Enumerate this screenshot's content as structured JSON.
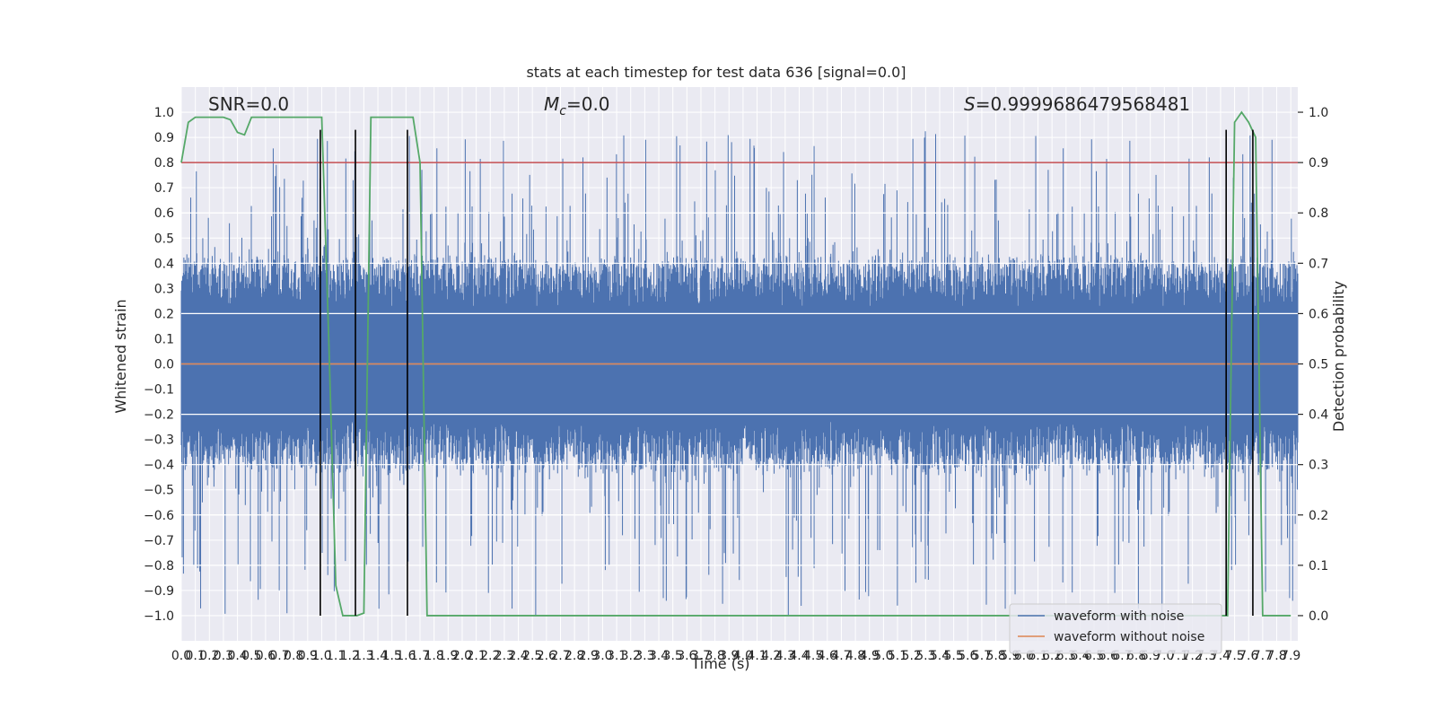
{
  "chart_data": {
    "type": "line",
    "title": "stats at each timestep for test data 636 [signal=0.0]",
    "xlabel": "Time (s)",
    "ylabel": "Whitened strain",
    "y2label": "Detection probability",
    "xlim": [
      0.0,
      7.95
    ],
    "ylim": [
      -1.1,
      1.1
    ],
    "y2lim": [
      -0.05,
      1.05
    ],
    "x_ticks": [
      0.0,
      0.1,
      0.2,
      0.3,
      0.4,
      0.5,
      0.6,
      0.7,
      0.8,
      0.9,
      1.0,
      1.1,
      1.2,
      1.3,
      1.4,
      1.5,
      1.6,
      1.7,
      1.8,
      1.9,
      2.0,
      2.1,
      2.2,
      2.3,
      2.4,
      2.5,
      2.6,
      2.7,
      2.8,
      2.9,
      3.0,
      3.1,
      3.2,
      3.3,
      3.4,
      3.5,
      3.6,
      3.7,
      3.8,
      3.9,
      4.0,
      4.1,
      4.2,
      4.3,
      4.4,
      4.5,
      4.6,
      4.7,
      4.8,
      4.9,
      5.0,
      5.1,
      5.2,
      5.3,
      5.4,
      5.5,
      5.6,
      5.7,
      5.8,
      5.9,
      6.0,
      6.1,
      6.2,
      6.3,
      6.4,
      6.5,
      6.6,
      6.7,
      6.8,
      6.9,
      7.0,
      7.1,
      7.2,
      7.3,
      7.4,
      7.5,
      7.6,
      7.7,
      7.8,
      7.9
    ],
    "x_tick_labels": [
      "0.0",
      "0.1",
      "0.2",
      "0.3",
      "0.4",
      "0.5",
      "0.6",
      "0.7",
      "0.8",
      "0.9",
      "1.0",
      "1.1",
      "1.2",
      "1.3",
      "1.4",
      "1.5",
      "1.6",
      "1.7",
      "1.8",
      "1.9",
      "2.0",
      "2.1",
      "2.2",
      "2.3",
      "2.4",
      "2.5",
      "2.6",
      "2.7",
      "2.8",
      "2.9",
      "3.0",
      "3.1",
      "3.2",
      "3.3",
      "3.4",
      "3.5",
      "3.6",
      "3.7",
      "3.8",
      "3.9",
      "4.0",
      "4.1",
      "4.2",
      "4.3",
      "4.4",
      "4.5",
      "4.6",
      "4.7",
      "4.8",
      "4.9",
      "5.0",
      "5.1",
      "5.2",
      "5.3",
      "5.4",
      "5.5",
      "5.6",
      "5.7",
      "5.8",
      "5.9",
      "6.0",
      "6.1",
      "6.2",
      "6.3",
      "6.4",
      "6.5",
      "6.6",
      "6.7",
      "6.8",
      "6.9",
      "7.0",
      "7.1",
      "7.2",
      "7.3",
      "7.4",
      "7.5",
      "7.6",
      "7.7",
      "7.8",
      "7.9"
    ],
    "y_ticks": [
      1.0,
      0.9,
      0.8,
      0.7,
      0.6,
      0.5,
      0.4,
      0.3,
      0.2,
      0.1,
      0.0,
      -0.1,
      -0.2,
      -0.3,
      -0.4,
      -0.5,
      -0.6,
      -0.7,
      -0.8,
      -0.9,
      -1.0
    ],
    "y_tick_labels": [
      "1.0",
      "0.9",
      "0.8",
      "0.7",
      "0.6",
      "0.5",
      "0.4",
      "0.3",
      "0.2",
      "0.1",
      "0.0",
      "−0.1",
      "−0.2",
      "−0.3",
      "−0.4",
      "−0.5",
      "−0.6",
      "−0.7",
      "−0.8",
      "−0.9",
      "−1.0"
    ],
    "y2_ticks": [
      1.0,
      0.9,
      0.8,
      0.7,
      0.6,
      0.5,
      0.4,
      0.3,
      0.2,
      0.1,
      0.0
    ],
    "y2_tick_labels": [
      "1.0",
      "0.9",
      "0.8",
      "0.7",
      "0.6",
      "0.5",
      "0.4",
      "0.3",
      "0.2",
      "0.1",
      "0.0"
    ],
    "annotations": {
      "snr": "SNR=0.0",
      "mc_symbol": "M",
      "mc_sub": "c",
      "mc_value": "=0.0",
      "s_symbol": "S",
      "s_value": "=0.9999686479568481"
    },
    "grid": true,
    "legend_position": "lower-right",
    "series": [
      {
        "name": "waveform with noise",
        "color": "#4c72b0",
        "kind": "noise-strain",
        "core_range": [
          -0.42,
          0.42
        ],
        "extreme_range": [
          -1.0,
          0.93
        ]
      },
      {
        "name": "waveform without noise",
        "color": "#dd8452",
        "y_constant": 0.0
      }
    ],
    "detection_probability": {
      "color": "#55a868",
      "axis": "right",
      "x": [
        0.0,
        0.05,
        0.1,
        0.15,
        0.2,
        0.25,
        0.3,
        0.35,
        0.4,
        0.45,
        0.5,
        0.55,
        0.6,
        0.65,
        0.7,
        0.75,
        0.8,
        0.85,
        0.9,
        0.95,
        1.0,
        1.05,
        1.1,
        1.15,
        1.2,
        1.25,
        1.3,
        1.35,
        1.4,
        1.45,
        1.5,
        1.55,
        1.6,
        1.65,
        1.7,
        1.75,
        1.8,
        1.85,
        1.9,
        2.0,
        3.0,
        4.0,
        5.0,
        6.0,
        7.0,
        7.4,
        7.45,
        7.5,
        7.55,
        7.6,
        7.65,
        7.7,
        7.75,
        7.8,
        7.9
      ],
      "y": [
        0.9,
        0.98,
        0.99,
        0.99,
        0.99,
        0.99,
        0.99,
        0.985,
        0.96,
        0.955,
        0.99,
        0.99,
        0.99,
        0.99,
        0.99,
        0.99,
        0.99,
        0.99,
        0.99,
        0.99,
        0.99,
        0.55,
        0.06,
        0.0,
        0.0,
        0.0,
        0.005,
        0.99,
        0.99,
        0.99,
        0.99,
        0.99,
        0.99,
        0.99,
        0.9,
        0.0,
        0.0,
        0.0,
        0.0,
        0.0,
        0.0,
        0.0,
        0.0,
        0.0,
        0.0,
        0.0,
        0.0,
        0.98,
        1.0,
        0.98,
        0.95,
        0.0,
        0.0,
        0.0,
        0.0
      ]
    },
    "threshold_line": {
      "color": "#c44e52",
      "axis": "right",
      "y": 0.9
    },
    "vertical_markers": {
      "color": "#000000",
      "x": [
        0.99,
        1.24,
        1.61,
        7.44,
        7.63
      ],
      "y_range": [
        -1.0,
        0.93
      ]
    }
  }
}
